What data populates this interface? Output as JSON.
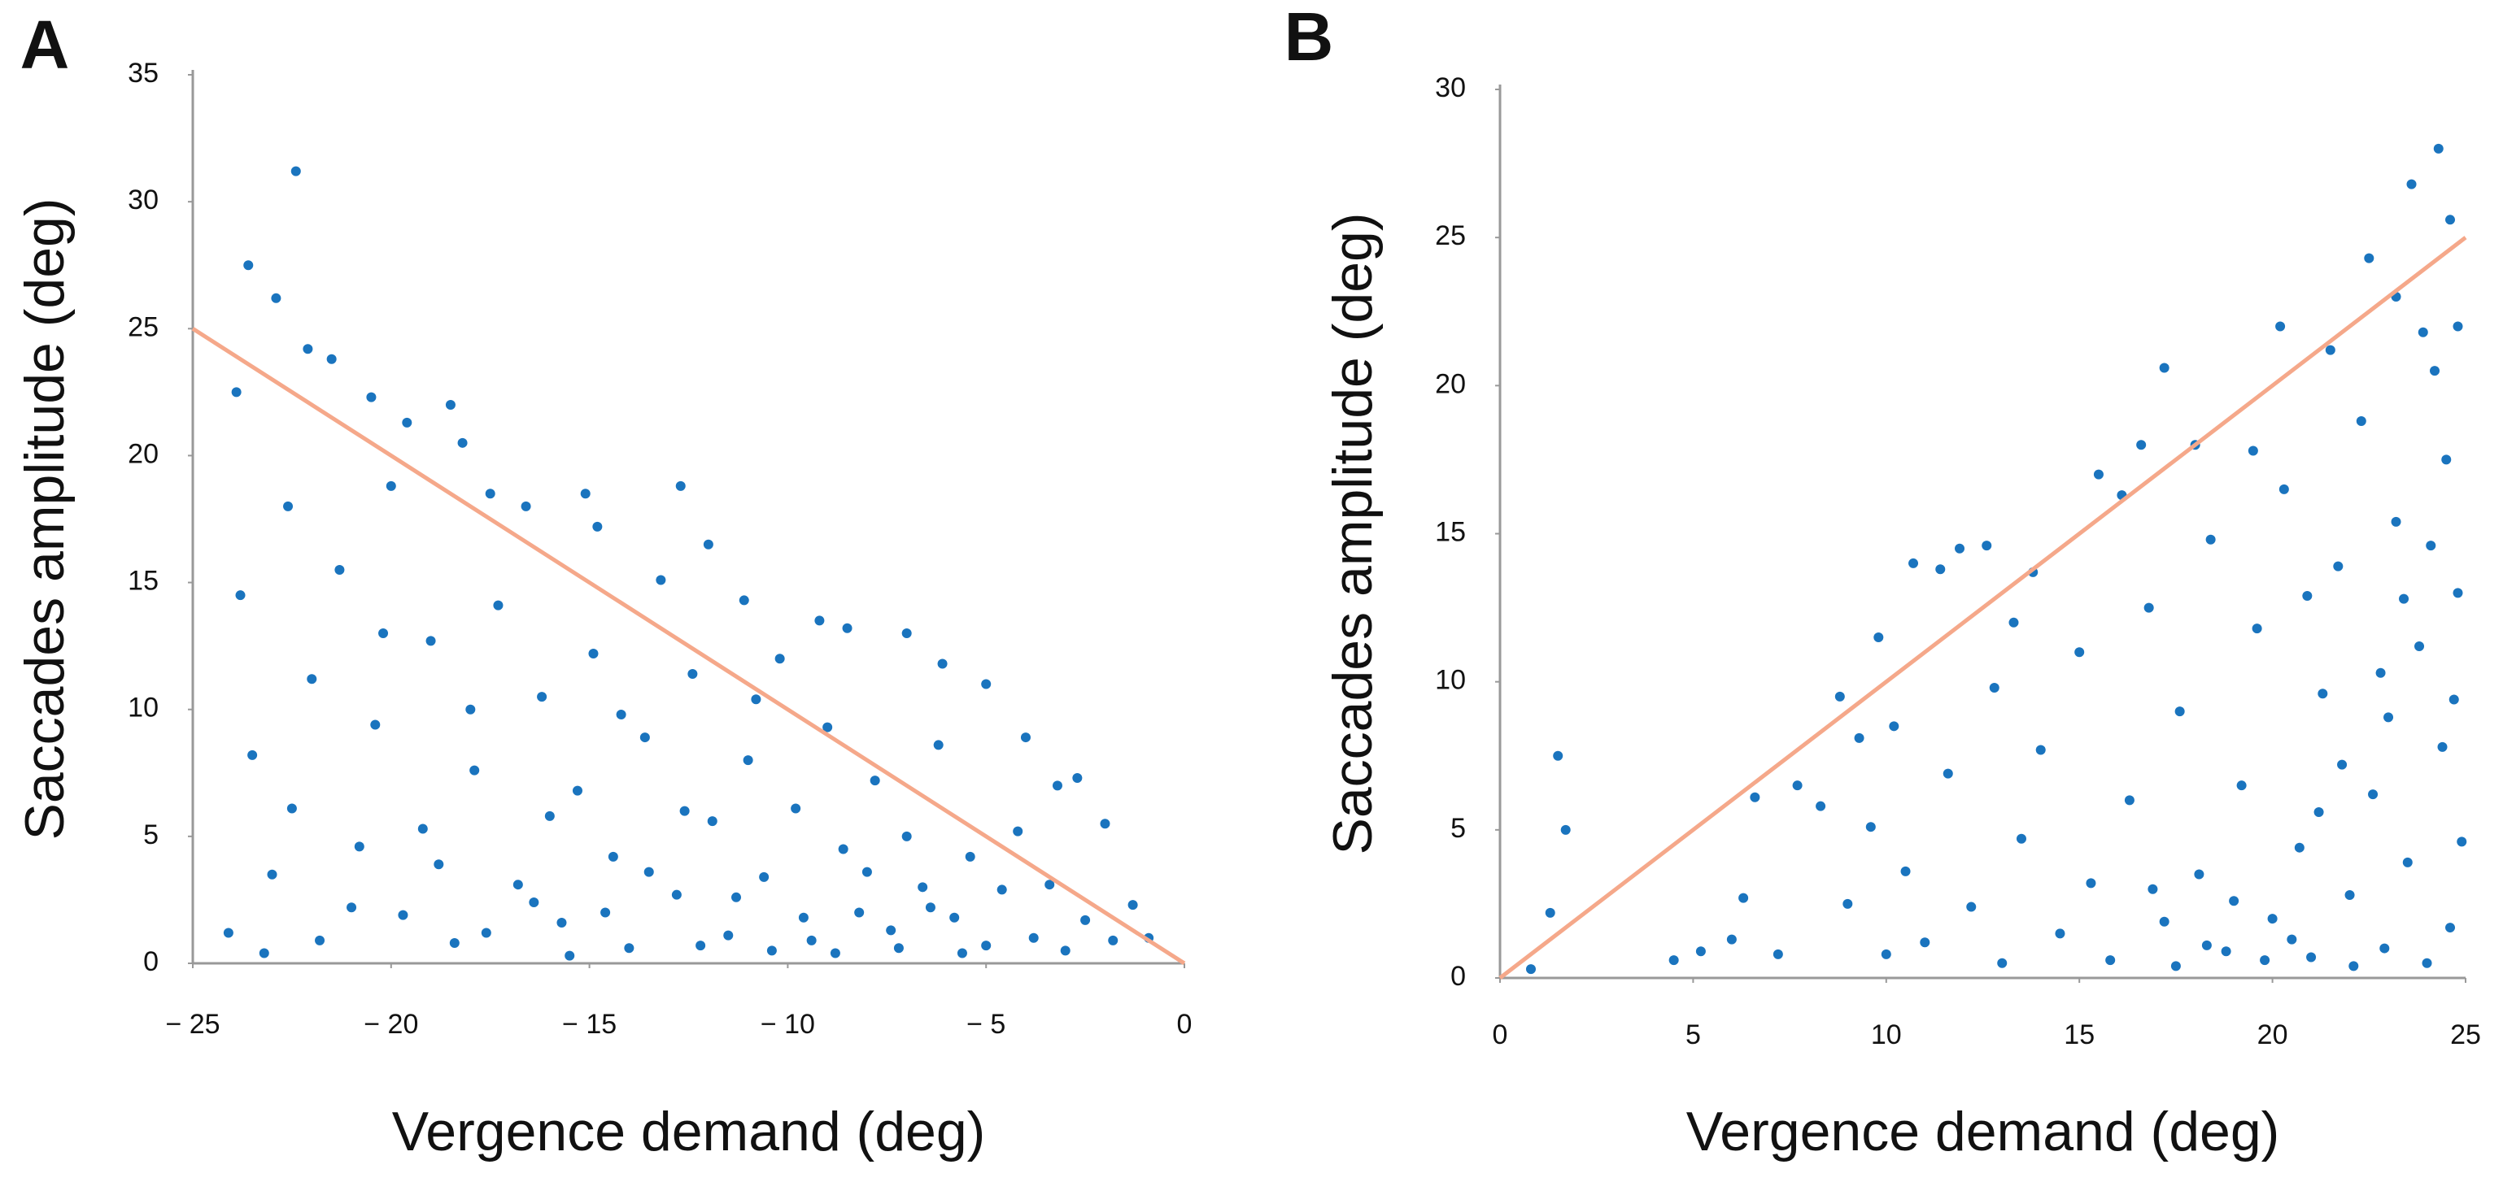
{
  "chart_data": [
    {
      "type": "scatter",
      "label": "A",
      "xlabel": "Vergence demand (deg)",
      "ylabel": "Saccades amplitude (deg)",
      "color": "#1a74be",
      "xlim": [
        -25,
        0
      ],
      "xticks": [
        {
          "value": -25,
          "label": "− 25"
        },
        {
          "value": -20,
          "label": "− 20"
        },
        {
          "value": -15,
          "label": "− 15"
        },
        {
          "value": -10,
          "label": "− 10"
        },
        {
          "value": -5,
          "label": "− 5"
        },
        0
      ],
      "ylim": [
        0,
        35
      ],
      "yticks": [
        0,
        5,
        10,
        15,
        20,
        25,
        30,
        35
      ],
      "reference_line": {
        "x": [
          -25,
          0
        ],
        "y": [
          25,
          0
        ],
        "color": "#f5a88a"
      },
      "x": [
        -24.1,
        -23.8,
        -23.5,
        -23.9,
        -23.6,
        -22.4,
        -22.9,
        -22.1,
        -21.5,
        -20.5,
        -19.6,
        -18.5,
        -18.2,
        -17.5,
        -16.6,
        -15.1,
        -14.8,
        -12.7,
        -12.0,
        -11.1,
        -9.2,
        -8.5,
        -7.0,
        -6.1,
        -5.0,
        -4.0,
        -3.2,
        -2.7,
        -2.0,
        -1.3,
        -0.9,
        -23,
        -22.5,
        -22,
        -21.3,
        -21,
        -20.4,
        -20,
        -19.2,
        -19,
        -18.4,
        -17.9,
        -17.3,
        -16.8,
        -16.2,
        -15.7,
        -15.3,
        -14.9,
        -14.4,
        -14,
        -13.6,
        -13.2,
        -12.8,
        -12.4,
        -11.9,
        -11.5,
        -11,
        -10.6,
        -10.2,
        -9.8,
        -9.4,
        -9.0,
        -8.6,
        -8.2,
        -7.8,
        -7.4,
        -7.0,
        -6.6,
        -6.2,
        -5.8,
        -5.4,
        -5.0,
        -4.6,
        -4.2,
        -3.8,
        -3.4,
        -3.0,
        -2.5,
        -1.8,
        -23.2,
        -21.8,
        -20.8,
        -19.7,
        -18.8,
        -17.6,
        -16.4,
        -15.5,
        -14.6,
        -13.5,
        -12.2,
        -11.3,
        -10.4,
        -9.6,
        -8.8,
        -8.0,
        -7.2,
        -6.4,
        -5.6,
        -12.6,
        -16.0,
        -20.2,
        -22.6,
        -18.0,
        -14.2,
        -10.8
      ],
      "y": [
        1.2,
        14.5,
        8.2,
        22.5,
        27.5,
        31.2,
        26.2,
        24.2,
        23.8,
        22.3,
        21.3,
        22.0,
        20.5,
        18.5,
        18.0,
        18.5,
        17.2,
        18.8,
        16.5,
        14.3,
        13.5,
        13.2,
        13.0,
        11.8,
        11.0,
        8.9,
        7.0,
        7.3,
        5.5,
        2.3,
        1.0,
        3.5,
        6.1,
        11.2,
        15.5,
        2.2,
        9.4,
        18.8,
        5.3,
        12.7,
        0.8,
        7.6,
        14.1,
        3.1,
        10.5,
        1.6,
        6.8,
        12.2,
        4.2,
        0.6,
        8.9,
        15.1,
        2.7,
        11.4,
        5.6,
        1.1,
        8.0,
        3.4,
        12.0,
        6.1,
        0.9,
        9.3,
        4.5,
        2.0,
        7.2,
        1.3,
        5.0,
        3.0,
        8.6,
        1.8,
        4.2,
        0.7,
        2.9,
        5.2,
        1.0,
        3.1,
        0.5,
        1.7,
        0.9,
        0.4,
        0.9,
        4.6,
        1.9,
        3.9,
        1.2,
        2.4,
        0.3,
        2.0,
        3.6,
        0.7,
        2.6,
        0.5,
        1.8,
        0.4,
        3.6,
        0.6,
        2.2,
        0.4,
        6.0,
        5.8,
        13.0,
        18.0,
        10.0,
        9.8,
        10.4
      ]
    },
    {
      "type": "scatter",
      "label": "B",
      "xlabel": "Vergence demand (deg)",
      "ylabel": "Saccades amplitude (deg)",
      "color": "#1a74be",
      "xlim": [
        0,
        25
      ],
      "xticks": [
        0,
        5,
        10,
        15,
        20,
        25
      ],
      "ylim": [
        0,
        30
      ],
      "yticks": [
        0,
        5,
        10,
        15,
        20,
        25,
        30
      ],
      "reference_line": {
        "x": [
          0,
          25
        ],
        "y": [
          0,
          25
        ],
        "color": "#f5a88a"
      },
      "x": [
        0.8,
        1.3,
        1.5,
        1.7,
        4.5,
        5.2,
        6.0,
        6.3,
        6.6,
        7.2,
        7.7,
        8.3,
        8.8,
        9.3,
        9.8,
        10.2,
        10.7,
        11.4,
        11.9,
        12.6,
        13.3,
        13.8,
        15.5,
        16.1,
        16.6,
        17.2,
        18.0,
        19.5,
        20.2,
        21.5,
        22.5,
        23.2,
        23.6,
        24.3,
        24.6,
        24.8,
        9.0,
        9.6,
        10.0,
        10.5,
        11.0,
        11.6,
        12.2,
        12.8,
        13.0,
        13.5,
        14.0,
        14.5,
        15.0,
        15.3,
        15.8,
        16.3,
        16.8,
        17.2,
        17.6,
        18.1,
        18.4,
        18.8,
        19.2,
        19.6,
        20.0,
        20.3,
        20.7,
        21.0,
        21.3,
        21.7,
        22.0,
        22.3,
        22.6,
        22.9,
        23.2,
        23.5,
        23.8,
        24.0,
        24.2,
        24.4,
        24.6,
        24.8,
        24.9,
        23.0,
        22.1,
        21.2,
        20.5,
        19.8,
        19.0,
        18.3,
        17.5,
        16.9,
        24.5,
        23.9,
        24.1,
        23.4,
        24.7,
        22.8,
        21.8,
        20.9
      ],
      "y": [
        0.3,
        2.2,
        7.5,
        5.0,
        0.6,
        0.9,
        1.3,
        2.7,
        6.1,
        0.8,
        6.5,
        5.8,
        9.5,
        8.1,
        11.5,
        8.5,
        14.0,
        13.8,
        14.5,
        14.6,
        12.0,
        13.7,
        17.0,
        16.3,
        18.0,
        20.6,
        18.0,
        17.8,
        22.0,
        21.2,
        24.3,
        23.0,
        26.8,
        28.0,
        25.6,
        22.0,
        2.5,
        5.1,
        0.8,
        3.6,
        1.2,
        6.9,
        2.4,
        9.8,
        0.5,
        4.7,
        7.7,
        1.5,
        11.0,
        3.2,
        0.6,
        6.0,
        12.5,
        1.9,
        9.0,
        3.5,
        14.8,
        0.9,
        6.5,
        11.8,
        2.0,
        16.5,
        4.4,
        0.7,
        9.6,
        13.9,
        2.8,
        18.8,
        6.2,
        1.0,
        15.4,
        3.9,
        11.2,
        0.5,
        20.5,
        7.8,
        1.7,
        13.0,
        4.6,
        8.8,
        0.4,
        5.6,
        1.3,
        0.6,
        2.6,
        1.1,
        0.4,
        3.0,
        17.5,
        21.8,
        14.6,
        12.8,
        9.4,
        10.3,
        7.2,
        12.9
      ]
    }
  ]
}
